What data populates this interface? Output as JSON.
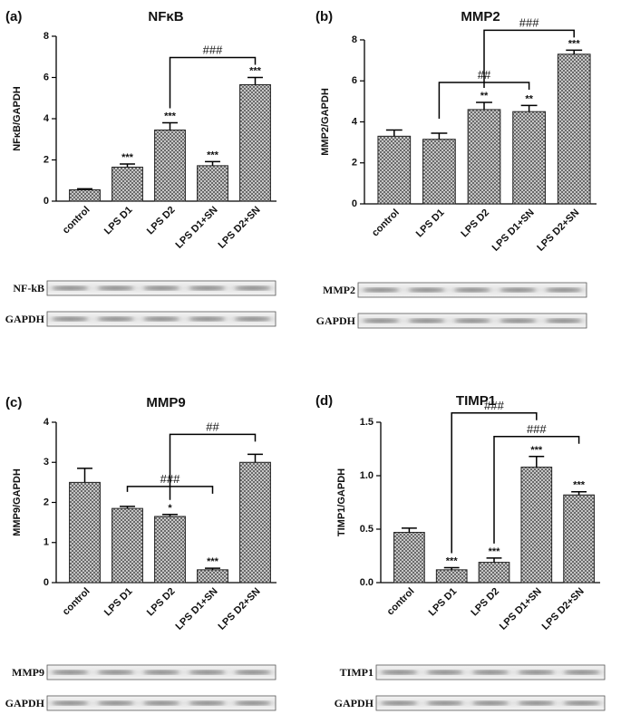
{
  "chart_data": [
    {
      "type": "bar",
      "panel": "(a)",
      "title": "NFκB",
      "ylabel": "NFκB/GAPDH",
      "categories": [
        "control",
        "LPS D1",
        "LPS D2",
        "LPS D1+SN",
        "LPS D2+SN"
      ],
      "values": [
        0.55,
        1.65,
        3.45,
        1.72,
        5.65
      ],
      "errors": [
        0.05,
        0.15,
        0.35,
        0.2,
        0.35
      ],
      "annotations": [
        null,
        "***",
        "***",
        "***",
        "***"
      ],
      "comparisons": [
        {
          "between": [
            "LPS D2",
            "LPS D2+SN"
          ],
          "label": "###"
        }
      ],
      "ylim": [
        0,
        8
      ],
      "yticks": [
        0,
        2,
        4,
        6,
        8
      ],
      "blots": [
        "NF-kB",
        "GAPDH"
      ]
    },
    {
      "type": "bar",
      "panel": "(b)",
      "title": "MMP2",
      "ylabel": "MMP2/GAPDH",
      "categories": [
        "control",
        "LPS D1",
        "LPS D2",
        "LPS D1+SN",
        "LPS D2+SN"
      ],
      "values": [
        3.3,
        3.15,
        4.6,
        4.5,
        7.3
      ],
      "errors": [
        0.3,
        0.3,
        0.35,
        0.3,
        0.2
      ],
      "annotations": [
        null,
        null,
        "**",
        "**",
        "***"
      ],
      "comparisons": [
        {
          "between": [
            "LPS D1",
            "LPS D1+SN"
          ],
          "label": "##"
        },
        {
          "between": [
            "LPS D2",
            "LPS D2+SN"
          ],
          "label": "###"
        }
      ],
      "ylim": [
        0,
        8
      ],
      "yticks": [
        0,
        2,
        4,
        6,
        8
      ],
      "blots": [
        "MMP2",
        "GAPDH"
      ]
    },
    {
      "type": "bar",
      "panel": "(c)",
      "title": "MMP9",
      "ylabel": "MMP9/GAPDH",
      "categories": [
        "control",
        "LPS D1",
        "LPS D2",
        "LPS D1+SN",
        "LPS D2+SN"
      ],
      "values": [
        2.5,
        1.85,
        1.65,
        0.32,
        3.0
      ],
      "errors": [
        0.35,
        0.05,
        0.05,
        0.04,
        0.2
      ],
      "annotations": [
        null,
        null,
        "*",
        "***",
        null
      ],
      "comparisons": [
        {
          "between": [
            "LPS D1",
            "LPS D1+SN"
          ],
          "label": "###"
        },
        {
          "between": [
            "LPS D2",
            "LPS D2+SN"
          ],
          "label": "##"
        }
      ],
      "ylim": [
        0,
        4
      ],
      "yticks": [
        0,
        1,
        2,
        3,
        4
      ],
      "blots": [
        "MMP9",
        "GAPDH"
      ]
    },
    {
      "type": "bar",
      "panel": "(d)",
      "title": "TIMP1",
      "ylabel": "TIMP1/GAPDH",
      "categories": [
        "control",
        "LPS D1",
        "LPS D2",
        "LPS D1+SN",
        "LPS D2+SN"
      ],
      "values": [
        0.47,
        0.12,
        0.19,
        1.08,
        0.82
      ],
      "errors": [
        0.04,
        0.02,
        0.04,
        0.1,
        0.03
      ],
      "annotations": [
        null,
        "***",
        "***",
        "***",
        "***"
      ],
      "comparisons": [
        {
          "between": [
            "LPS D2",
            "LPS D2+SN"
          ],
          "label": "###"
        },
        {
          "between": [
            "LPS D1",
            "LPS D1+SN"
          ],
          "label": "###"
        }
      ],
      "ylim": [
        0,
        1.5
      ],
      "yticks": [
        {
          "value": 0,
          "label": "0.0"
        },
        0.5,
        {
          "value": 1,
          "label": "1.0"
        },
        1.5
      ],
      "blots": [
        "TIMP1",
        "GAPDH"
      ]
    }
  ]
}
